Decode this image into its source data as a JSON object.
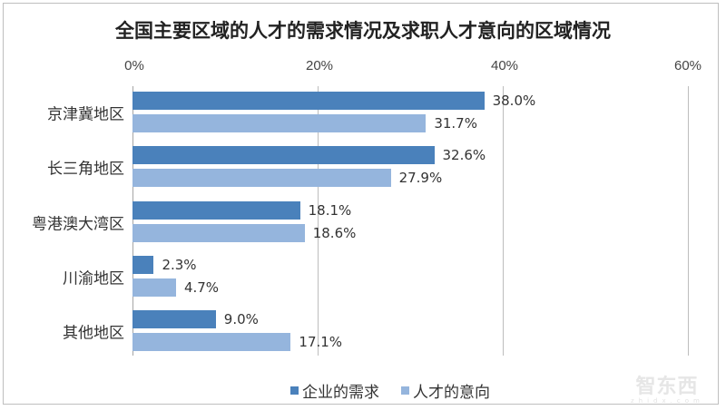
{
  "title": "全国主要区域的人才的需求情况及求职人才意向的区域情况",
  "colors": {
    "series_0": "#4a81bb",
    "series_1": "#95b5dd",
    "gridline": "#bdbdbd",
    "frame": "#bfbfbf"
  },
  "axis": {
    "ticks": [
      "0%",
      "20%",
      "40%",
      "60%"
    ]
  },
  "legend": {
    "items": [
      "企业的需求",
      "人才的意向"
    ]
  },
  "watermark": {
    "text": "智东西",
    "sub": "zhidx.com"
  },
  "chart_data": {
    "type": "bar",
    "orientation": "horizontal",
    "title": "全国主要区域的人才的需求情况及求职人才意向的区域情况",
    "categories": [
      "京津冀地区",
      "长三角地区",
      "粤港澳大湾区",
      "川渝地区",
      "其他地区"
    ],
    "series": [
      {
        "name": "企业的需求",
        "values": [
          38.0,
          32.6,
          18.1,
          2.3,
          9.0
        ],
        "labels": [
          "38.0%",
          "32.6%",
          "18.1%",
          "2.3%",
          "9.0%"
        ]
      },
      {
        "name": "人才的意向",
        "values": [
          31.7,
          27.9,
          18.6,
          4.7,
          17.1
        ],
        "labels": [
          "31.7%",
          "27.9%",
          "18.6%",
          "4.7%",
          "17.1%"
        ]
      }
    ],
    "xlabel": "",
    "ylabel": "",
    "xlim": [
      0,
      60
    ],
    "x_ticks": [
      "0%",
      "20%",
      "40%",
      "60%"
    ],
    "x_axis_position": "top",
    "grid": true,
    "legend_position": "bottom",
    "unit": "%"
  }
}
